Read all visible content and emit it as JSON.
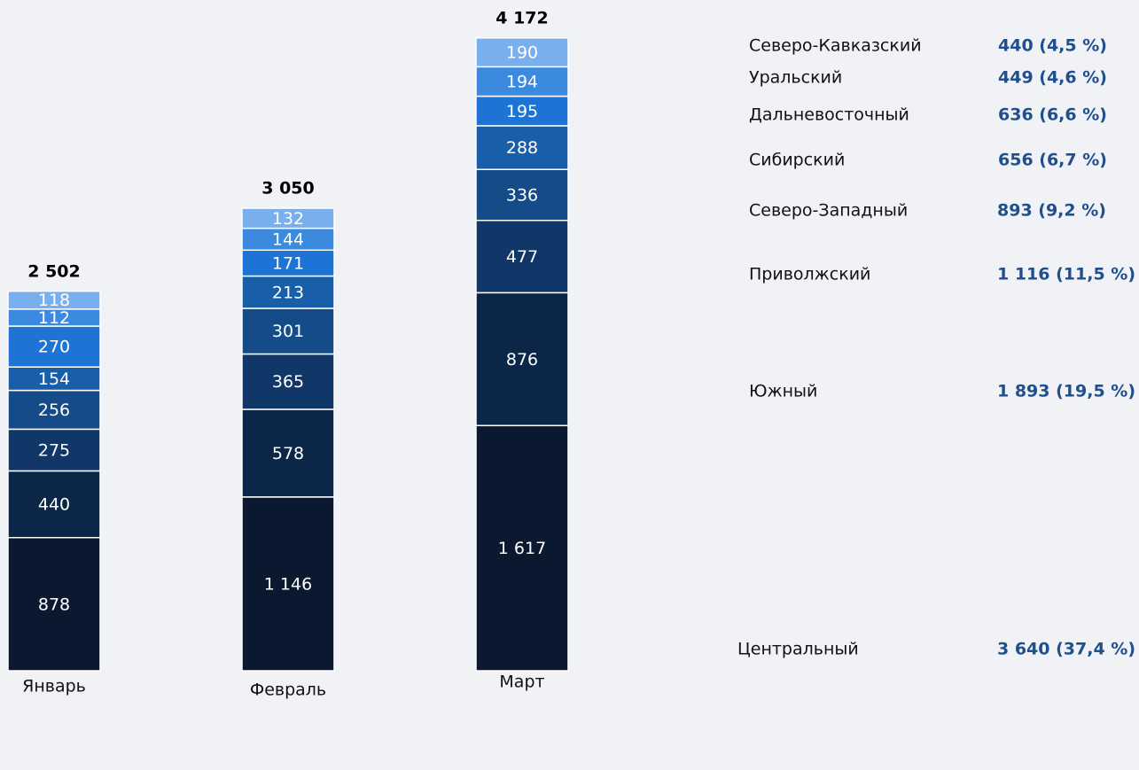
{
  "chart_data": {
    "type": "stacked_bar",
    "categories": [
      "Январь",
      "Февраль",
      "Март"
    ],
    "totals": [
      2502,
      3050,
      4172
    ],
    "total_labels": [
      "2 502",
      "3 050",
      "4 172"
    ],
    "ylim": [
      0,
      4400
    ],
    "series": [
      {
        "name": "Центральный",
        "color": "#0a1930",
        "values": [
          878,
          1146,
          1617
        ],
        "value_labels": [
          "878",
          "1 146",
          "1 617"
        ],
        "summary": "3 640 (37,4 %)"
      },
      {
        "name": "Южный",
        "color": "#0c2648",
        "values": [
          440,
          578,
          876
        ],
        "summary": "1 893 (19,5 %)"
      },
      {
        "name": "Приволжский",
        "color": "#103767",
        "values": [
          275,
          365,
          477
        ],
        "summary": "1 116 (11,5 %)"
      },
      {
        "name": "Северо-Западный",
        "color": "#154b88",
        "values": [
          256,
          301,
          336
        ],
        "summary": "893 (9,2 %)"
      },
      {
        "name": "Сибирский",
        "color": "#195ea9",
        "values": [
          154,
          213,
          288
        ],
        "summary": "656 (6,7 %)"
      },
      {
        "name": "Дальневосточный",
        "color": "#1d74d4",
        "values": [
          270,
          171,
          195
        ],
        "summary": "636 (6,6 %)"
      },
      {
        "name": "Уральский",
        "color": "#3c8ae0",
        "values": [
          112,
          144,
          194
        ],
        "summary": "449 (4,6 %)"
      },
      {
        "name": "Северо-Кавказский",
        "color": "#79afec",
        "values": [
          118,
          132,
          190
        ],
        "summary": "440 (4,5 %)"
      }
    ]
  }
}
